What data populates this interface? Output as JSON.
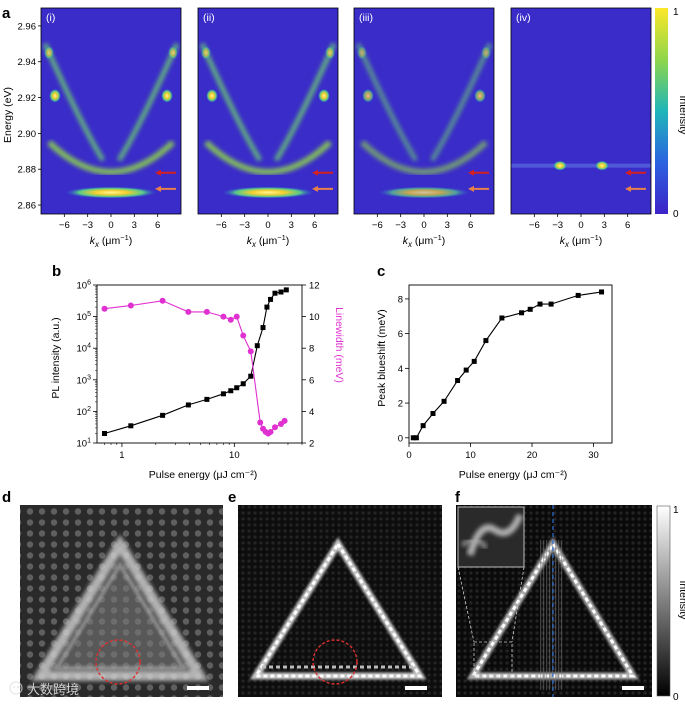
{
  "panel_letters": {
    "a": "a",
    "b": "b",
    "c": "c",
    "d": "d",
    "e": "e",
    "f": "f"
  },
  "panel_a": {
    "subpanels": [
      "(i)",
      "(ii)",
      "(iii)",
      "(iv)"
    ],
    "ylabel": "Energy (eV)",
    "yticks": [
      "2.96",
      "2.94",
      "2.92",
      "2.90",
      "2.88",
      "2.86"
    ],
    "xticks": [
      "−6",
      "−3",
      "0",
      "3",
      "6"
    ],
    "xlabel_k": "k",
    "xlabel_sub": "x",
    "xlabel_unit": " (μm",
    "xlabel_exp": "−1",
    "xlabel_close": ")",
    "colorbar_label": "Intensity",
    "colorbar_max": "1",
    "colorbar_min": "0",
    "arrow_colors": {
      "upper": "#d42020",
      "lower": "#e8804a"
    }
  },
  "panel_f": {
    "colorbar_label": "Intensity",
    "colorbar_max": "1",
    "colorbar_min": "0"
  },
  "watermark": "大数跨境",
  "chart_data": [
    {
      "id": "b",
      "type": "line",
      "xscale": "log",
      "xlabel": "Pulse energy (μJ cm⁻²)",
      "xlim": [
        0.6,
        40
      ],
      "xticks": [
        "1",
        "10"
      ],
      "ylabel_left": "PL intensity (a.u.)",
      "ylim_left_exp": [
        1,
        6
      ],
      "yticks_left": [
        "10¹",
        "10²",
        "10³",
        "10⁴",
        "10⁵",
        "10⁶"
      ],
      "ylabel_right": "Linewidth (meV)",
      "ylim_right": [
        2,
        12
      ],
      "yticks_right": [
        "2",
        "4",
        "6",
        "8",
        "10",
        "12"
      ],
      "series": [
        {
          "name": "PL intensity",
          "color": "#000000",
          "marker": "square",
          "axis": "left",
          "x": [
            0.7,
            1.2,
            2.3,
            3.9,
            5.7,
            8,
            9.3,
            10.5,
            12,
            14,
            16,
            18,
            19.5,
            21,
            23,
            26,
            29
          ],
          "y": [
            20,
            35,
            75,
            160,
            240,
            360,
            450,
            560,
            750,
            1300,
            12000,
            45000,
            200000,
            350000,
            550000,
            600000,
            700000
          ]
        },
        {
          "name": "Linewidth",
          "color": "#e030d0",
          "marker": "circle",
          "axis": "right",
          "x": [
            0.7,
            1.2,
            2.3,
            3.9,
            5.7,
            8,
            9.3,
            10.5,
            12,
            14,
            17,
            18,
            19,
            20,
            21,
            23,
            26,
            28
          ],
          "y": [
            10.5,
            10.7,
            11,
            10.3,
            10.3,
            10,
            9.8,
            10,
            8.8,
            7.8,
            3.3,
            2.9,
            2.7,
            2.6,
            2.7,
            3.0,
            3.2,
            3.4
          ]
        }
      ]
    },
    {
      "id": "c",
      "type": "line",
      "xlabel": "Pulse energy (μJ cm⁻²)",
      "ylabel": "Peak blueshift (meV)",
      "xlim": [
        0,
        33
      ],
      "ylim": [
        -0.3,
        8.8
      ],
      "xticks": [
        "0",
        "10",
        "20",
        "30"
      ],
      "yticks": [
        "0",
        "2",
        "4",
        "6",
        "8"
      ],
      "series": [
        {
          "name": "Peak blueshift",
          "color": "#000000",
          "marker": "square",
          "x": [
            0.7,
            1.2,
            2.3,
            3.9,
            5.7,
            7.9,
            9.3,
            10.6,
            12.5,
            15.1,
            18.3,
            19.7,
            21.3,
            23.1,
            27.5,
            31.3
          ],
          "y": [
            0,
            0,
            0.7,
            1.4,
            2.1,
            3.3,
            3.9,
            4.4,
            5.6,
            6.9,
            7.2,
            7.4,
            7.7,
            7.7,
            8.2,
            8.4
          ]
        }
      ]
    }
  ]
}
